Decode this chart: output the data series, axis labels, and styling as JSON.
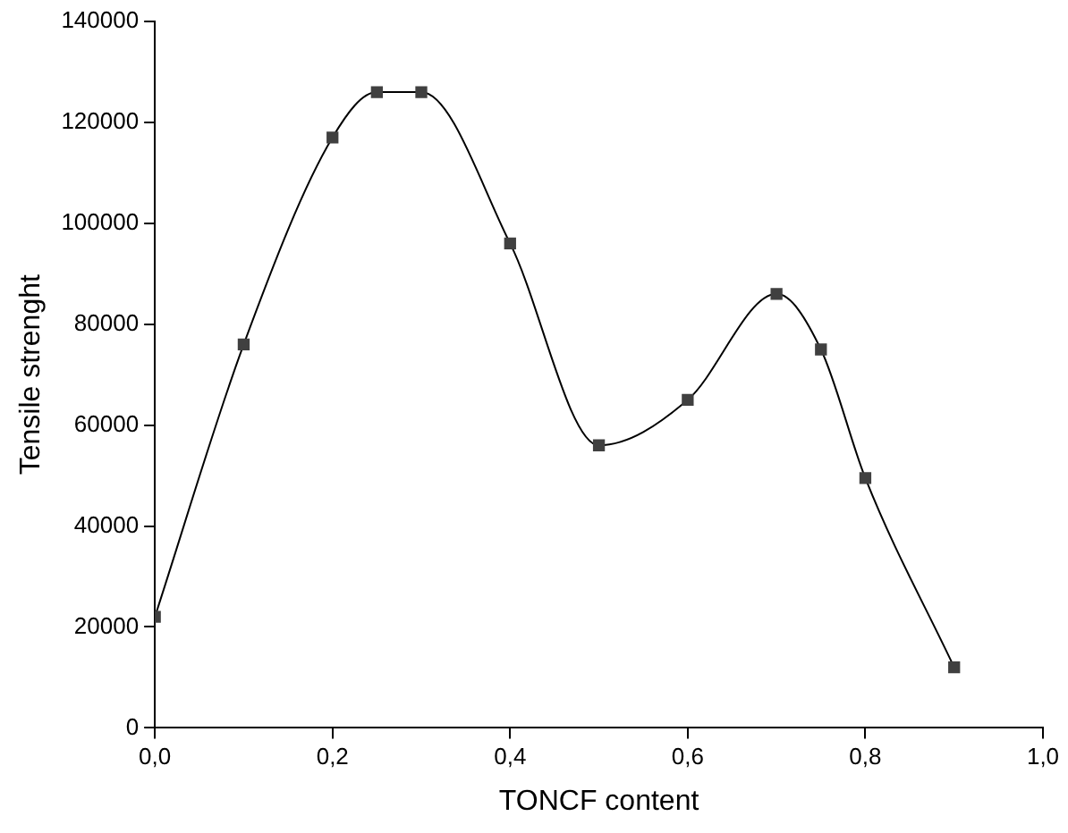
{
  "chart_data": {
    "type": "line",
    "xlabel": "TONCF content",
    "ylabel": "Tensile strenght",
    "x": [
      0,
      0.1,
      0.2,
      0.25,
      0.3,
      0.4,
      0.5,
      0.6,
      0.7,
      0.75,
      0.8,
      0.9
    ],
    "series": [
      {
        "color": "#404040",
        "values": [
          22000,
          76000,
          117000,
          126000,
          126000,
          96000,
          56000,
          65000,
          86000,
          75000,
          49500,
          12000
        ]
      }
    ],
    "xlim": [
      0,
      1
    ],
    "xticks": [
      {
        "value": 0,
        "label": "0,0"
      },
      {
        "value": 0.2,
        "label": "0,2"
      },
      {
        "value": 0.4,
        "label": "0,4"
      },
      {
        "value": 0.6,
        "label": "0,6"
      },
      {
        "value": 0.8,
        "label": "0,8"
      },
      {
        "value": 1,
        "label": "1,0"
      }
    ],
    "ylim": [
      0,
      140000
    ],
    "yticks": [
      0,
      20000,
      40000,
      60000,
      80000,
      100000,
      120000,
      140000
    ],
    "grid": false,
    "legend": false,
    "marker": "square",
    "line_style": "solid"
  }
}
